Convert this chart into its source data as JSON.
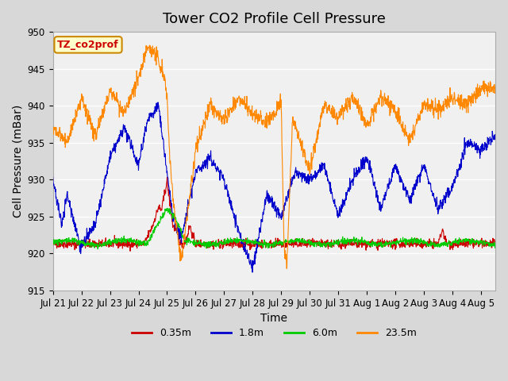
{
  "title": "Tower CO2 Profile Cell Pressure",
  "xlabel": "Time",
  "ylabel": "Cell Pressure (mBar)",
  "ylim": [
    915,
    950
  ],
  "xlim_days": [
    0,
    15.5
  ],
  "x_tick_labels": [
    "Jul 21",
    "Jul 22",
    "Jul 23",
    "Jul 24",
    "Jul 25",
    "Jul 26",
    "Jul 27",
    "Jul 28",
    "Jul 29",
    "Jul 30",
    "Jul 31",
    "Aug 1",
    "Aug 2",
    "Aug 3",
    "Aug 4",
    "Aug 5"
  ],
  "legend_labels": [
    "0.35m",
    "1.8m",
    "6.0m",
    "23.5m"
  ],
  "legend_colors": [
    "#cc0000",
    "#0000cc",
    "#00cc00",
    "#ff8800"
  ],
  "annotation_text": "TZ_co2prof",
  "annotation_color": "#cc0000",
  "annotation_bg": "#ffffcc",
  "annotation_border": "#cc8800",
  "background_color": "#e8e8e8",
  "plot_bg_color": "#f0f0f0",
  "grid_color": "#ffffff",
  "title_fontsize": 13,
  "axis_label_fontsize": 10,
  "tick_fontsize": 8.5
}
